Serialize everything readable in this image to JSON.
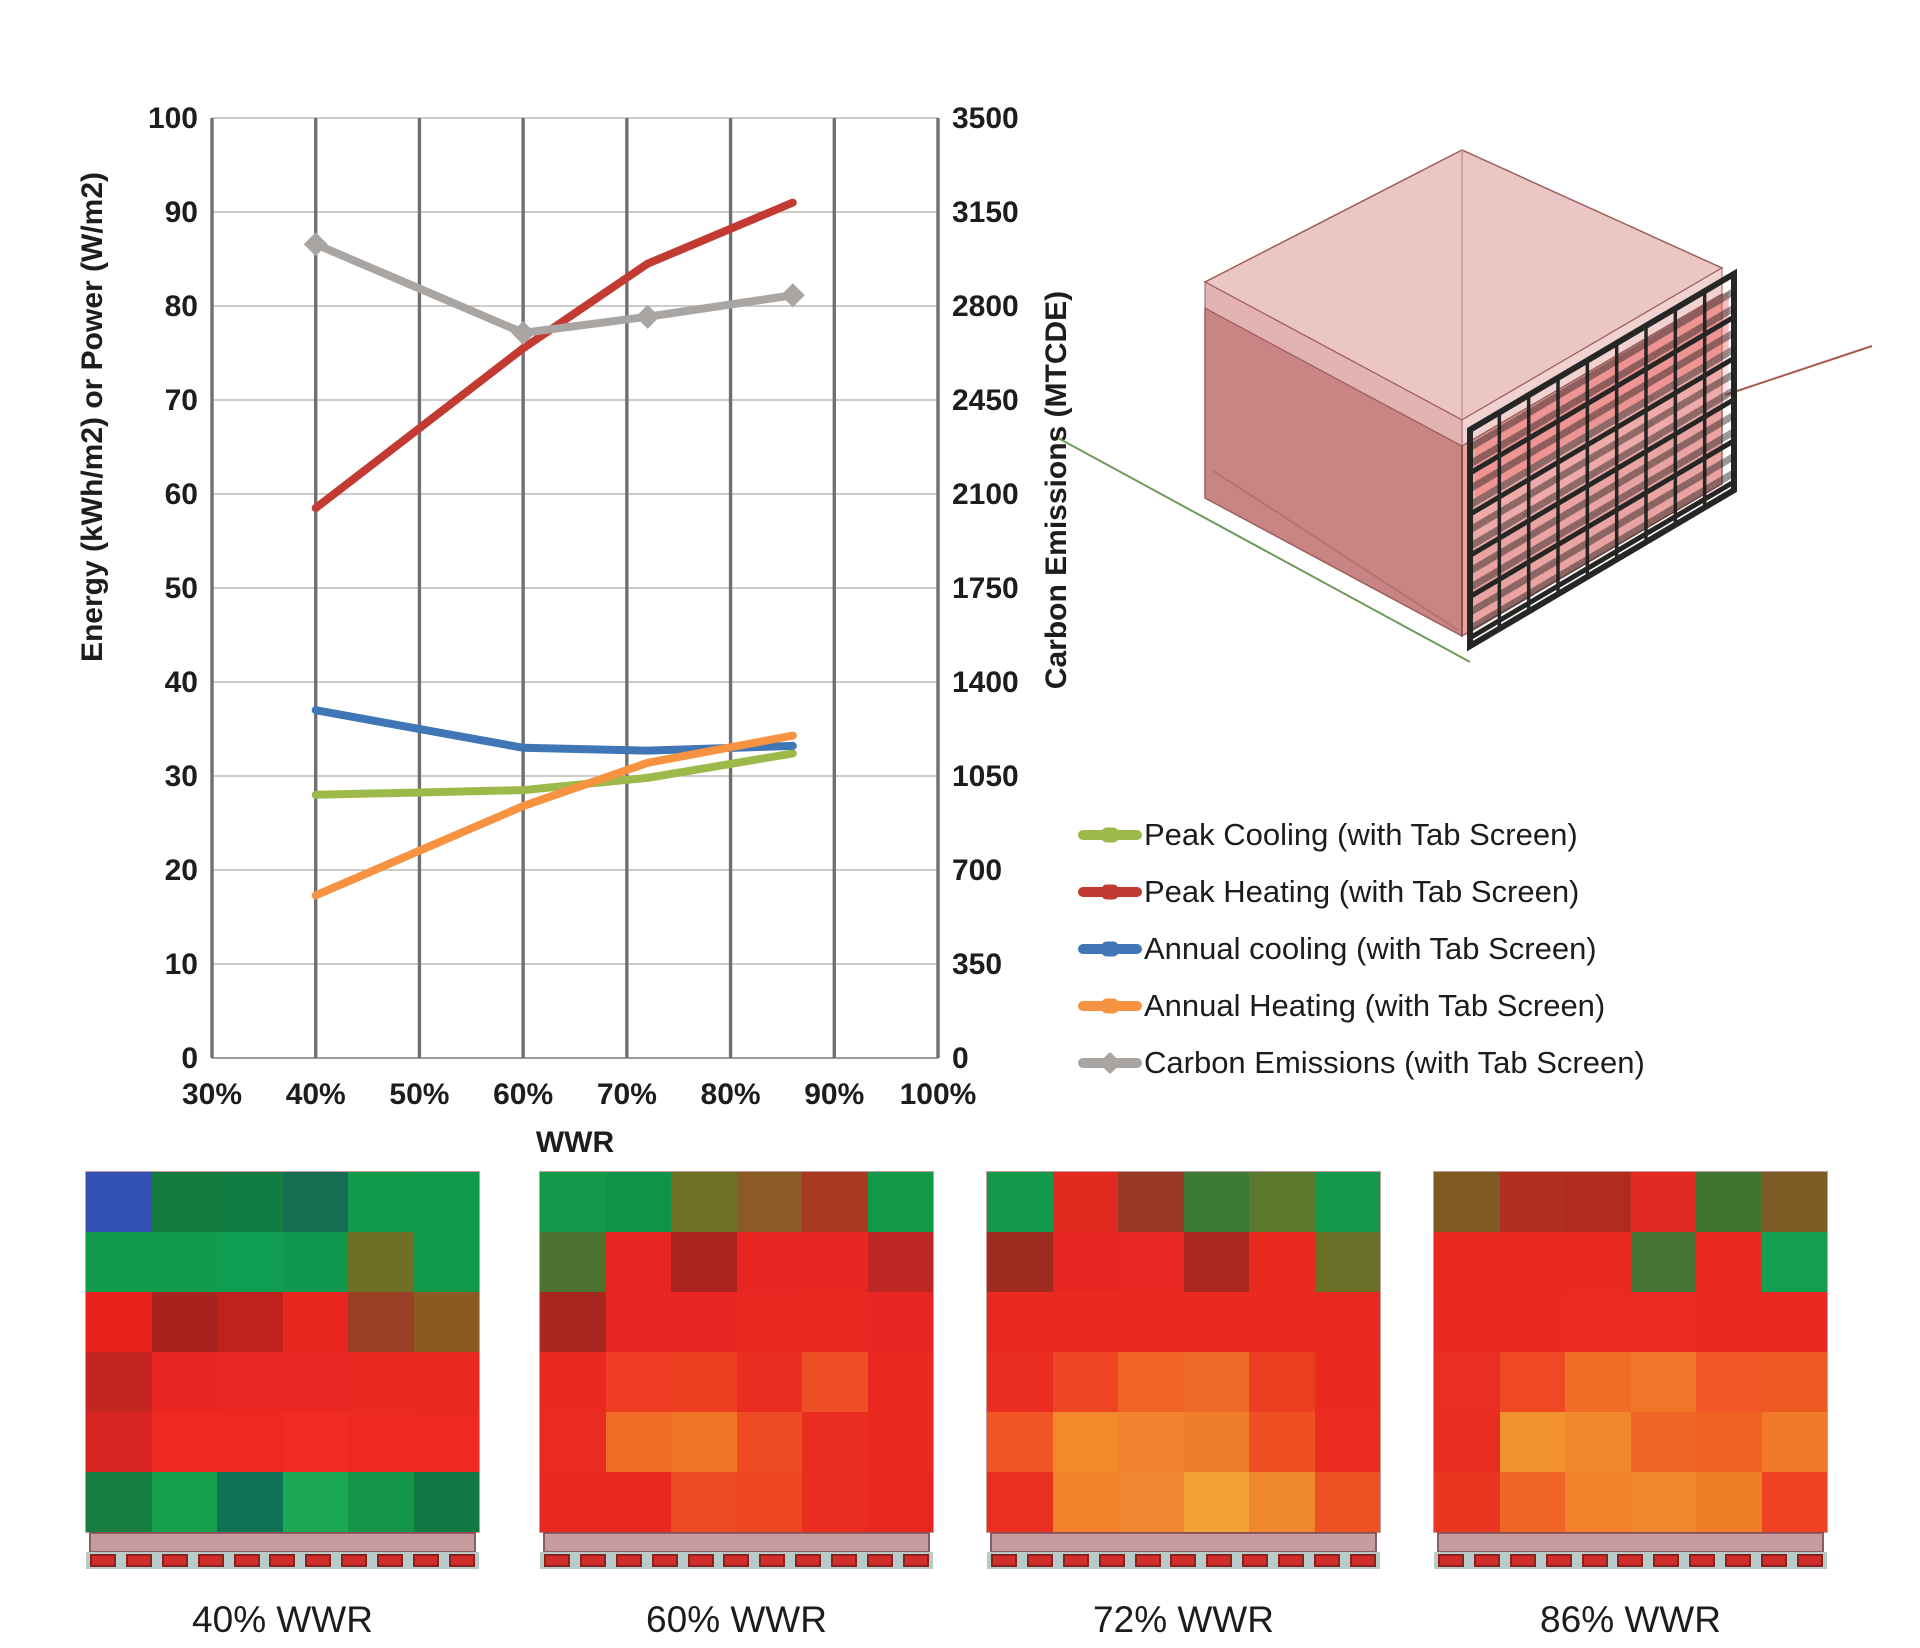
{
  "chart_data": {
    "type": "line",
    "title": "",
    "xlabel": "WWR",
    "ylabel_left": "Energy (kWh/m2) or Power (W/m2)",
    "ylabel_right": "Carbon Emissions (MTCDE)",
    "xlim": [
      30,
      100
    ],
    "ylim_left": [
      0,
      100
    ],
    "ylim_right": [
      0,
      3500
    ],
    "x_ticks": [
      30,
      40,
      50,
      60,
      70,
      80,
      90,
      100
    ],
    "x_tick_labels": [
      "30%",
      "40%",
      "50%",
      "60%",
      "70%",
      "80%",
      "90%",
      "100%"
    ],
    "left_ticks": [
      0,
      10,
      20,
      30,
      40,
      50,
      60,
      70,
      80,
      90,
      100
    ],
    "right_ticks": [
      0,
      350,
      700,
      1050,
      1400,
      1750,
      2100,
      2450,
      2800,
      3150,
      3500
    ],
    "grid": {
      "vertical": true,
      "horizontal": true
    },
    "legend_position": "right-of-chart-below-model",
    "x": [
      40,
      60,
      72,
      86
    ],
    "series": [
      {
        "name": "Peak Cooling (with Tab Screen)",
        "color": "#9cb94a",
        "axis": "left",
        "marker": "none",
        "values": [
          28,
          28.5,
          29.8,
          32.4
        ]
      },
      {
        "name": "Peak Heating (with Tab Screen)",
        "color": "#c23a32",
        "axis": "left",
        "marker": "none",
        "values": [
          58.5,
          75.5,
          84.5,
          91
        ]
      },
      {
        "name": "Annual cooling (with Tab Screen)",
        "color": "#4076b5",
        "axis": "left",
        "marker": "none",
        "values": [
          37,
          33,
          32.7,
          33.2
        ]
      },
      {
        "name": "Annual Heating (with Tab Screen)",
        "color": "#f79240",
        "axis": "left",
        "marker": "none",
        "values": [
          17.3,
          26.8,
          31.4,
          34.3
        ]
      },
      {
        "name": "Carbon Emissions (with Tab Screen)",
        "color": "#a8a5a3",
        "axis": "right",
        "marker": "diamond",
        "values": [
          3030,
          2700,
          2760,
          2840
        ]
      }
    ]
  },
  "building": {
    "top_color": "#ecc6c5",
    "parapet_color": "#f0d2d1",
    "left_wall_color": "#c98583",
    "right_wall_color": "#e9a3a1",
    "screen_color": "#262624",
    "ground_line_color": "#6f9a5c"
  },
  "heatmap_footer": {
    "strip_color": "#c79ba0",
    "tab_color": "#d02e2b",
    "tab_bg_color": "#b7cbcb",
    "tab_count": 11
  },
  "heatmaps": [
    {
      "label": "40% WWR",
      "cells": [
        [
          "#3350b4",
          "#157c3f",
          "#117c44",
          "#156d52",
          "#109a4a",
          "#0f9a4c"
        ],
        [
          "#129a4d",
          "#109a4b",
          "#0f9d52",
          "#10984e",
          "#6f7026",
          "#129a4b"
        ],
        [
          "#e8211d",
          "#a8231e",
          "#bf221d",
          "#e8251f",
          "#9a3f23",
          "#8c5a20"
        ],
        [
          "#c32520",
          "#e92622",
          "#ea2722",
          "#ea2722",
          "#e92a22",
          "#e92822"
        ],
        [
          "#d92521",
          "#ee2822",
          "#ee2822",
          "#ef2b22",
          "#ee2922",
          "#ee2822"
        ],
        [
          "#157d42",
          "#16a04e",
          "#0e7355",
          "#1da853",
          "#14954a",
          "#117a44"
        ]
      ]
    },
    {
      "label": "60% WWR",
      "cells": [
        [
          "#13994a",
          "#0f9549",
          "#6f7326",
          "#8a5b24",
          "#a93a22",
          "#129a49"
        ],
        [
          "#4d7331",
          "#e82420",
          "#ad2420",
          "#e82623",
          "#e82622",
          "#bd2723"
        ],
        [
          "#a8271f",
          "#e92722",
          "#e92722",
          "#ea2822",
          "#ea2822",
          "#e92722"
        ],
        [
          "#ea2a21",
          "#ee3d22",
          "#ee3f22",
          "#ea2d21",
          "#ef4f24",
          "#ea2a21"
        ],
        [
          "#ea2b21",
          "#f06d26",
          "#f07426",
          "#ee4a23",
          "#ea2d21",
          "#ea2a21"
        ],
        [
          "#e92822",
          "#e92a21",
          "#ee4a23",
          "#ee4823",
          "#ea2d21",
          "#e92822"
        ]
      ]
    },
    {
      "label": "72% WWR",
      "cells": [
        [
          "#13994a",
          "#e32a20",
          "#993a24",
          "#3d7a38",
          "#5c7a2d",
          "#12994b"
        ],
        [
          "#a02b20",
          "#e82621",
          "#e82822",
          "#aa2a22",
          "#e82a20",
          "#6b7028"
        ],
        [
          "#e92822",
          "#ea2922",
          "#ea2a22",
          "#ea2a22",
          "#e92922",
          "#e92822"
        ],
        [
          "#ea2d21",
          "#ed4523",
          "#f06526",
          "#f06a27",
          "#ec3f22",
          "#ea2a21"
        ],
        [
          "#f05524",
          "#f28a2c",
          "#f18230",
          "#f07d2a",
          "#ee4f23",
          "#ea2c21"
        ],
        [
          "#e93020",
          "#f2832b",
          "#f28530",
          "#f4a238",
          "#f0882e",
          "#ee5124"
        ]
      ]
    },
    {
      "label": "86% WWR",
      "cells": [
        [
          "#7e5a22",
          "#b02e22",
          "#b22a20",
          "#e32a22",
          "#40742f",
          "#7a5c24"
        ],
        [
          "#e82a20",
          "#e92822",
          "#e92a21",
          "#457335",
          "#e82a21",
          "#12a050"
        ],
        [
          "#e92822",
          "#ea2a22",
          "#ea2b22",
          "#ea2b22",
          "#ea2a22",
          "#e92922"
        ],
        [
          "#ea2e21",
          "#ee4923",
          "#f06c27",
          "#f2762a",
          "#f05724",
          "#ee5a24"
        ],
        [
          "#ea2d21",
          "#f2922f",
          "#f1882c",
          "#f06628",
          "#f06224",
          "#f07a28"
        ],
        [
          "#ea3520",
          "#f06626",
          "#f2832c",
          "#f2862c",
          "#f07e28",
          "#ee4222"
        ]
      ]
    }
  ]
}
